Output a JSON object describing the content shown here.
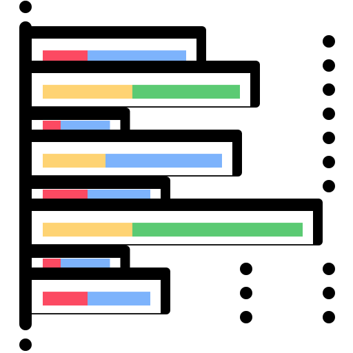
{
  "icon_name": "stacked-horizontal-bar-chart-icon",
  "colors": {
    "outline": "#000000",
    "background": "#ffffff",
    "red": "#fc4a62",
    "blue": "#7db3fc",
    "yellow": "#fed373",
    "green": "#5bca73"
  },
  "bars": [
    {
      "segments": [
        {
          "color": "red",
          "value": 1
        },
        {
          "color": "blue",
          "value": 2.2
        }
      ]
    },
    {
      "segments": [
        {
          "color": "yellow",
          "value": 2
        },
        {
          "color": "green",
          "value": 2.4
        }
      ]
    },
    {
      "segments": [
        {
          "color": "red",
          "value": 0.4
        },
        {
          "color": "blue",
          "value": 1.1
        }
      ]
    },
    {
      "segments": [
        {
          "color": "yellow",
          "value": 1.4
        },
        {
          "color": "blue",
          "value": 2.6
        }
      ]
    },
    {
      "segments": [
        {
          "color": "red",
          "value": 1
        },
        {
          "color": "blue",
          "value": 1.4
        }
      ]
    },
    {
      "segments": [
        {
          "color": "yellow",
          "value": 2
        },
        {
          "color": "green",
          "value": 3.8
        }
      ]
    },
    {
      "segments": [
        {
          "color": "red",
          "value": 0.4
        },
        {
          "color": "blue",
          "value": 1.1
        }
      ]
    },
    {
      "segments": [
        {
          "color": "red",
          "value": 1
        },
        {
          "color": "blue",
          "value": 1.4
        }
      ]
    }
  ]
}
